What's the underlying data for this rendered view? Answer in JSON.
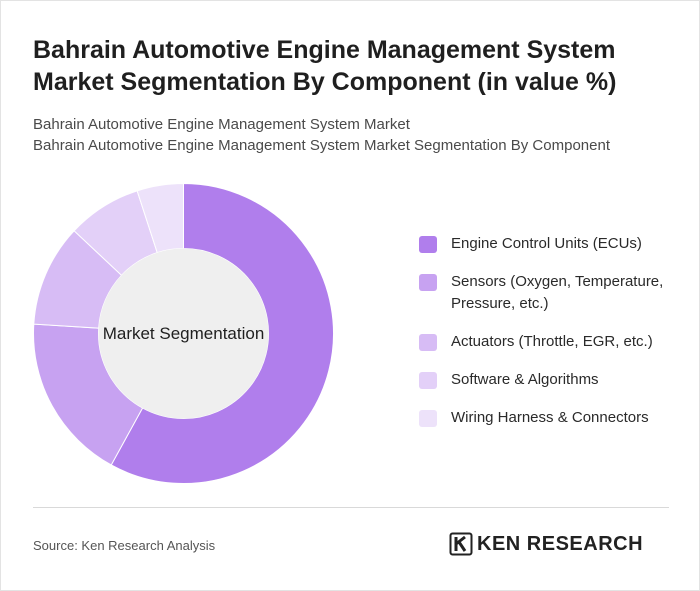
{
  "title": "Bahrain Automotive Engine Management System Market Segmentation By Component (in value %)",
  "subtitle_lines": [
    "Bahrain Automotive Engine Management System Market",
    "Bahrain Automotive Engine Management System Market Segmentation By Component"
  ],
  "center_label": "Market Segmentation",
  "source": "Source: Ken Research Analysis",
  "logo": {
    "text": "KEN RESEARCH",
    "icon": "ken-research-logo-icon"
  },
  "chart_data": {
    "type": "pie",
    "donut": true,
    "categories": [
      "Engine Control Units (ECUs)",
      "Sensors (Oxygen, Temperature, Pressure, etc.)",
      "Actuators (Throttle, EGR, etc.)",
      "Software & Algorithms",
      "Wiring Harness & Connectors"
    ],
    "values": [
      58,
      18,
      11,
      8,
      5
    ],
    "colors": [
      "#b07eec",
      "#c7a2f1",
      "#d7bcf5",
      "#e3d0f8",
      "#ede2fa"
    ],
    "center_color": "#efefef",
    "legend_position": "right"
  }
}
